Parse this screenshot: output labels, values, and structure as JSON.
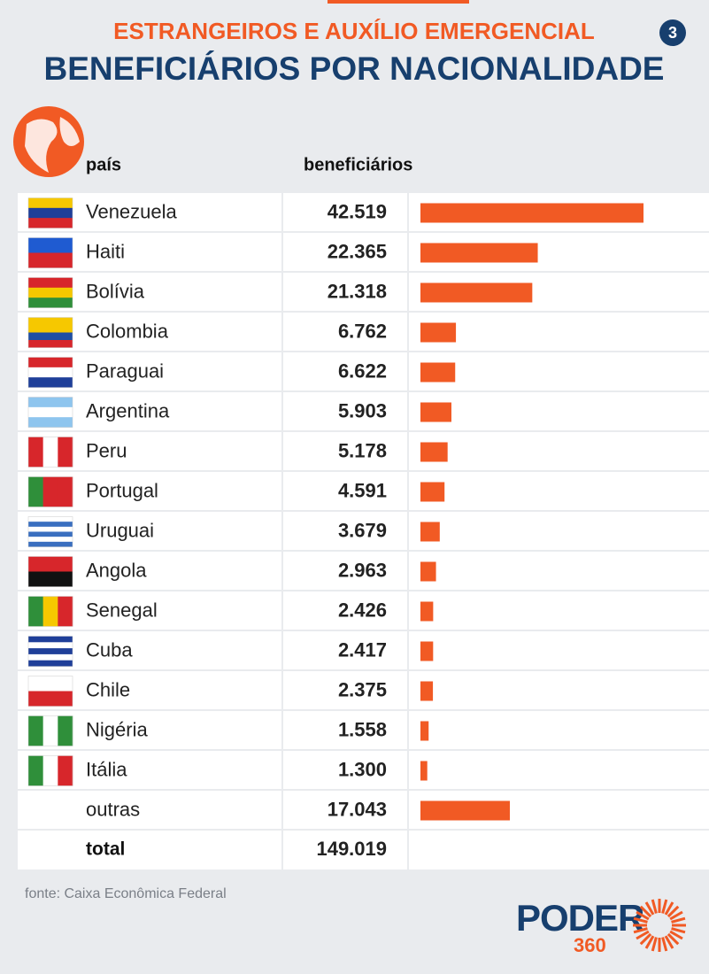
{
  "badge": "3",
  "chart_data": {
    "type": "bar",
    "orientation": "horizontal",
    "title": "ESTRANGEIROS E AUXÍLIO EMERGENCIAL",
    "subtitle": "BENEFICIÁRIOS POR NACIONALIDADE",
    "category_header": "país",
    "value_header": "beneficiários",
    "categories": [
      "Venezuela",
      "Haiti",
      "Bolívia",
      "Colombia",
      "Paraguai",
      "Argentina",
      "Peru",
      "Portugal",
      "Uruguai",
      "Angola",
      "Senegal",
      "Cuba",
      "Chile",
      "Nigéria",
      "Itália",
      "outras"
    ],
    "values": [
      42519,
      22365,
      21318,
      6762,
      6622,
      5903,
      5178,
      4591,
      3679,
      2963,
      2426,
      2417,
      2375,
      1558,
      1300,
      17043
    ],
    "value_labels": [
      "42.519",
      "22.365",
      "21.318",
      "6.762",
      "6.622",
      "5.903",
      "5.178",
      "4.591",
      "3.679",
      "2.963",
      "2.426",
      "2.417",
      "2.375",
      "1.558",
      "1.300",
      "17.043"
    ],
    "color": "#f15a24",
    "total_name": "total",
    "total": 149019,
    "total_label": "149.019"
  },
  "source": "fonte: Caixa Econômica Federal",
  "logo": {
    "name": "PODER",
    "number": "360"
  }
}
